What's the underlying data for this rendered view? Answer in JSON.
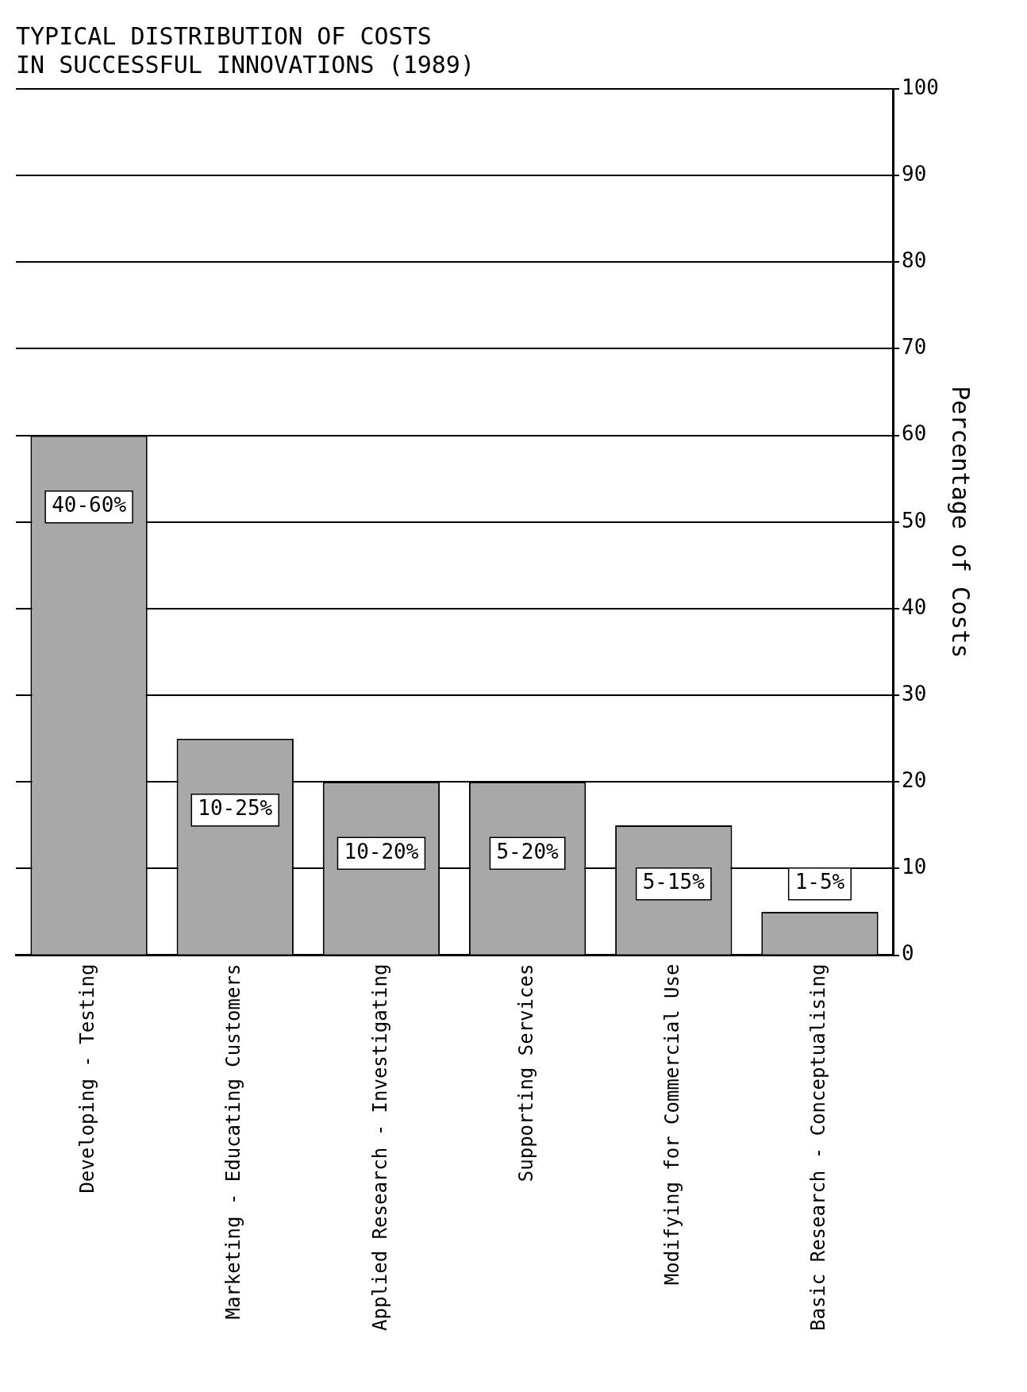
{
  "chart_data": {
    "type": "bar",
    "title": [
      "TYPICAL DISTRIBUTION OF COSTS",
      "IN SUCCESSFUL INNOVATIONS (1989)"
    ],
    "ylabel": "Percentage of Costs",
    "categories": [
      "Developing - Testing",
      "Marketing - Educating Customers",
      "Applied Research - Investigating",
      "Supporting Services",
      "Modifying for Commercial Use",
      "Basic Research - Conceptualising"
    ],
    "values": [
      60,
      25,
      20,
      20,
      15,
      5
    ],
    "annotations": [
      "40-60%",
      "10-25%",
      "10-20%",
      "5-20%",
      "5-15%",
      "1-5%"
    ],
    "color": "#a8a8a8",
    "ylim": [
      0,
      100
    ],
    "yticks": [
      0,
      10,
      20,
      30,
      40,
      50,
      60,
      70,
      80,
      90,
      100
    ],
    "grid": "y"
  }
}
